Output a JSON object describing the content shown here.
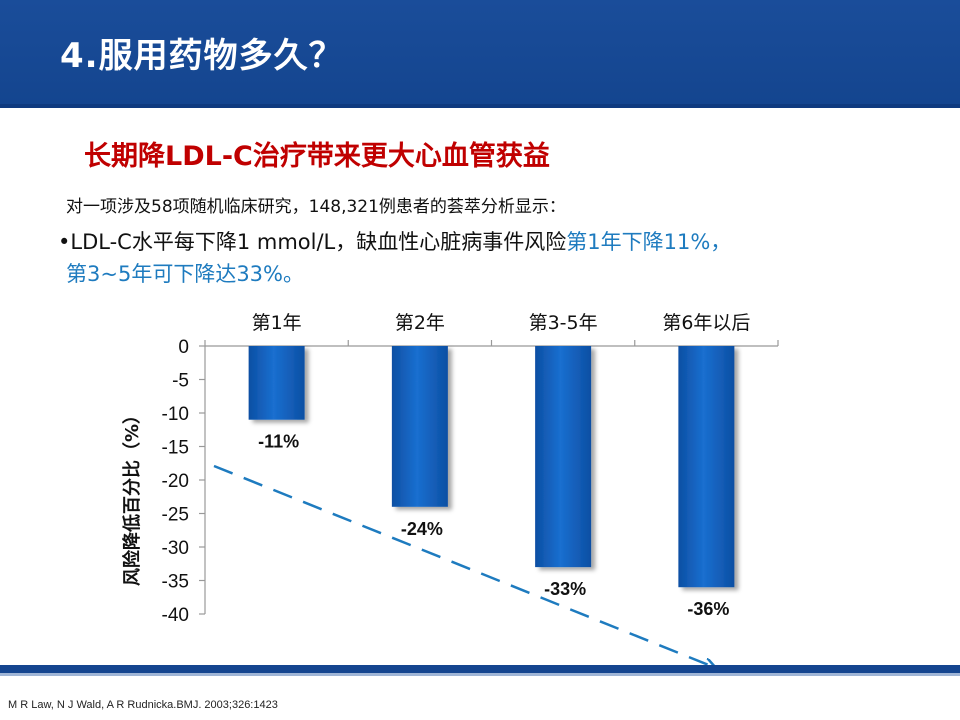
{
  "header": {
    "title": "4.服用药物多久？"
  },
  "subtitle": "长期降LDL-C治疗带来更大心血管获益",
  "intro": "对一项涉及58项随机临床研究，148,321例患者的荟萃分析显示：",
  "bullet": {
    "part1": "•LDL-C水平每下降1 mmol/L，缺血性心脏病事件风险",
    "part2": "第1年下降11%，",
    "line2": "第3~5年可下降达33%。"
  },
  "citation": "M R Law, N J Wald, A R Rudnicka.BMJ. 2003;326:1423",
  "colors": {
    "header": "#14458f",
    "bar": "#1565c0",
    "accent": "#1e7bbf",
    "subtitle": "#c00000"
  },
  "chart_data": {
    "type": "bar",
    "categories": [
      "第1年",
      "第2年",
      "第3-5年",
      "第6年以后"
    ],
    "values": [
      -11,
      -24,
      -33,
      -36
    ],
    "data_labels": [
      "-11%",
      "-24%",
      "-33%",
      "-36%"
    ],
    "ylabel": "风险降低百分比（%）",
    "ylim": [
      -40,
      0
    ],
    "yticks": [
      0,
      -5,
      -10,
      -15,
      -20,
      -25,
      -30,
      -35,
      -40
    ],
    "category_axis": "top",
    "trend_line": "dashed arrow",
    "grid": false
  }
}
